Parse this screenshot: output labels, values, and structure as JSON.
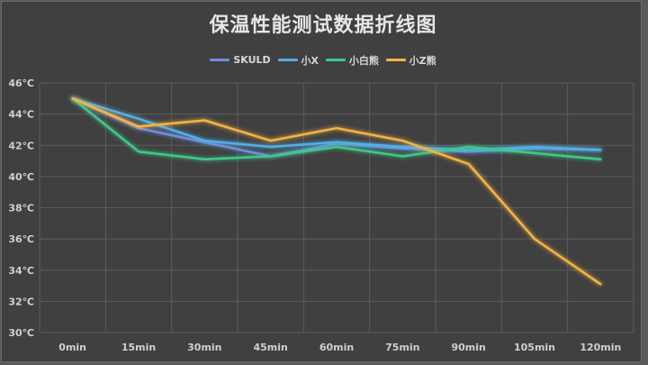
{
  "chart_data": {
    "type": "line",
    "title": "保温性能测试数据折线图",
    "xlabel": "",
    "ylabel": "",
    "categories": [
      "0min",
      "15min",
      "30min",
      "45min",
      "60min",
      "75min",
      "90min",
      "105min",
      "120min"
    ],
    "y_ticks": [
      "30℃",
      "32℃",
      "34℃",
      "36℃",
      "38℃",
      "40℃",
      "42℃",
      "44℃",
      "46℃"
    ],
    "ylim": [
      30,
      46
    ],
    "grid": true,
    "legend_position": "top",
    "series": [
      {
        "name": "SKULD",
        "color": "#6f8fe0",
        "values": [
          45.0,
          43.1,
          42.2,
          41.3,
          42.1,
          41.8,
          41.6,
          41.8,
          41.7
        ]
      },
      {
        "name": "小X",
        "color": "#4fb0e8",
        "values": [
          45.0,
          43.7,
          42.3,
          41.9,
          42.2,
          41.9,
          41.7,
          41.9,
          41.7
        ]
      },
      {
        "name": "小白熊",
        "color": "#3ec98a",
        "values": [
          45.0,
          41.6,
          41.1,
          41.3,
          41.9,
          41.3,
          41.9,
          41.5,
          41.1
        ]
      },
      {
        "name": "小Z熊",
        "color": "#f5b342",
        "values": [
          45.0,
          43.2,
          43.6,
          42.3,
          43.1,
          42.3,
          40.8,
          36.0,
          33.1
        ]
      }
    ]
  },
  "colors": {
    "background": "#404040",
    "grid": "#5c5c5c",
    "text": "#d0d0d0"
  }
}
